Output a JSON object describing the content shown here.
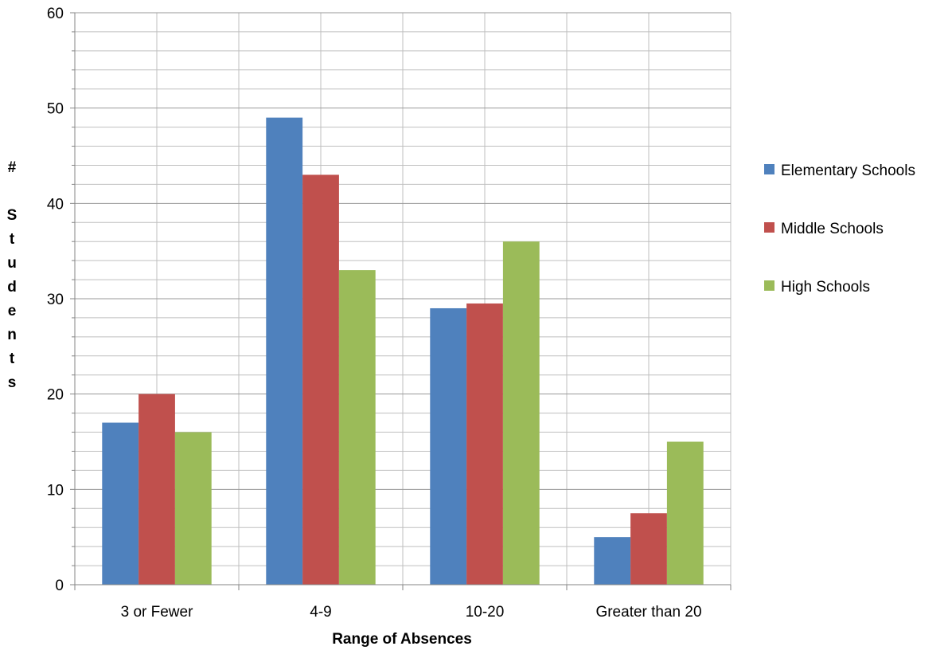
{
  "chart_data": {
    "type": "bar",
    "title": "",
    "xlabel": "Range of Absences",
    "ylabel": "# Students",
    "ylabel_display": [
      "#",
      "",
      "S",
      "t",
      "u",
      "d",
      "e",
      "n",
      "t",
      "s"
    ],
    "categories": [
      "3 or Fewer",
      "4-9",
      "10-20",
      "Greater than 20"
    ],
    "series": [
      {
        "name": "Elementary Schools",
        "color": "#4F81BD",
        "values": [
          17,
          49,
          29,
          5
        ]
      },
      {
        "name": "Middle Schools",
        "color": "#C0504D",
        "values": [
          20,
          43,
          29.5,
          7.5
        ]
      },
      {
        "name": "High Schools",
        "color": "#9BBB59",
        "values": [
          16,
          33,
          36,
          15
        ]
      }
    ],
    "ylim": [
      0,
      60
    ],
    "y_ticks": [
      "0",
      "10",
      "20",
      "30",
      "40",
      "50",
      "60"
    ],
    "minor_gridlines": true,
    "major_gridlines": true,
    "legend_position": "right"
  }
}
